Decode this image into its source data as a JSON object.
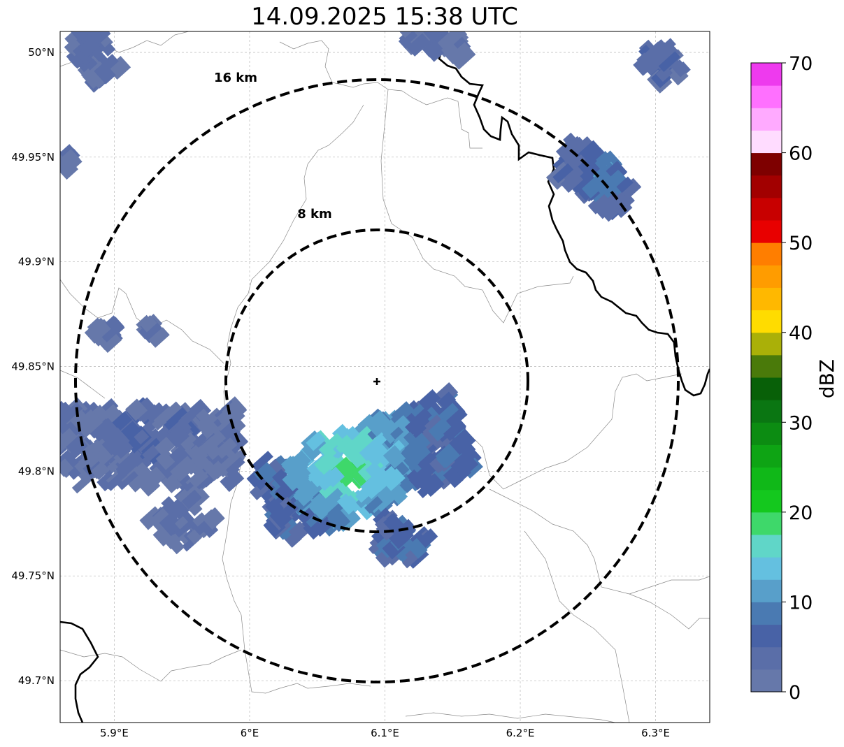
{
  "title": "14.09.2025 15:38 UTC",
  "map": {
    "lon_range": [
      5.86,
      6.34
    ],
    "lat_range": [
      49.68,
      50.01
    ],
    "x_ticks": [
      {
        "value": 5.9,
        "label": "5.9°E"
      },
      {
        "value": 6.0,
        "label": "6°E"
      },
      {
        "value": 6.1,
        "label": "6.1°E"
      },
      {
        "value": 6.2,
        "label": "6.2°E"
      },
      {
        "value": 6.3,
        "label": "6.3°E"
      }
    ],
    "y_ticks": [
      {
        "value": 49.7,
        "label": "49.7°N"
      },
      {
        "value": 49.75,
        "label": "49.75°N"
      },
      {
        "value": 49.8,
        "label": "49.8°N"
      },
      {
        "value": 49.85,
        "label": "49.85°N"
      },
      {
        "value": 49.9,
        "label": "49.9°N"
      },
      {
        "value": 49.95,
        "label": "49.95°N"
      },
      {
        "value": 50.0,
        "label": "50°N"
      }
    ],
    "radar_site": {
      "lon": 6.095,
      "lat": 49.844,
      "marker": "plus-icon"
    },
    "range_rings": [
      {
        "label": "8 km",
        "radius_km": 8
      },
      {
        "label": "16 km",
        "radius_km": 16
      }
    ],
    "grid": true,
    "echo_cells": [
      {
        "lon": 6.095,
        "lat": 49.81,
        "dbz": 12
      }
    ]
  },
  "colorbar": {
    "label": "dBZ",
    "min": 0,
    "max": 70,
    "tick_labels": [
      "0",
      "10",
      "20",
      "30",
      "40",
      "50",
      "60",
      "70"
    ],
    "colors": [
      "#6678aa",
      "#5a6ea8",
      "#4862a6",
      "#4a7ab2",
      "#589fca",
      "#64c0e0",
      "#60d6c8",
      "#3ed86a",
      "#14c81e",
      "#10b818",
      "#0ea414",
      "#0c8c12",
      "#0a7612",
      "#086008",
      "#4a7a0a",
      "#aab008",
      "#ffdc00",
      "#ffb800",
      "#ff9c00",
      "#ff7e00",
      "#e80000",
      "#c80000",
      "#a20000",
      "#7e0000",
      "#ffdcff",
      "#ffaaff",
      "#ff70ff",
      "#ee3aee"
    ]
  }
}
